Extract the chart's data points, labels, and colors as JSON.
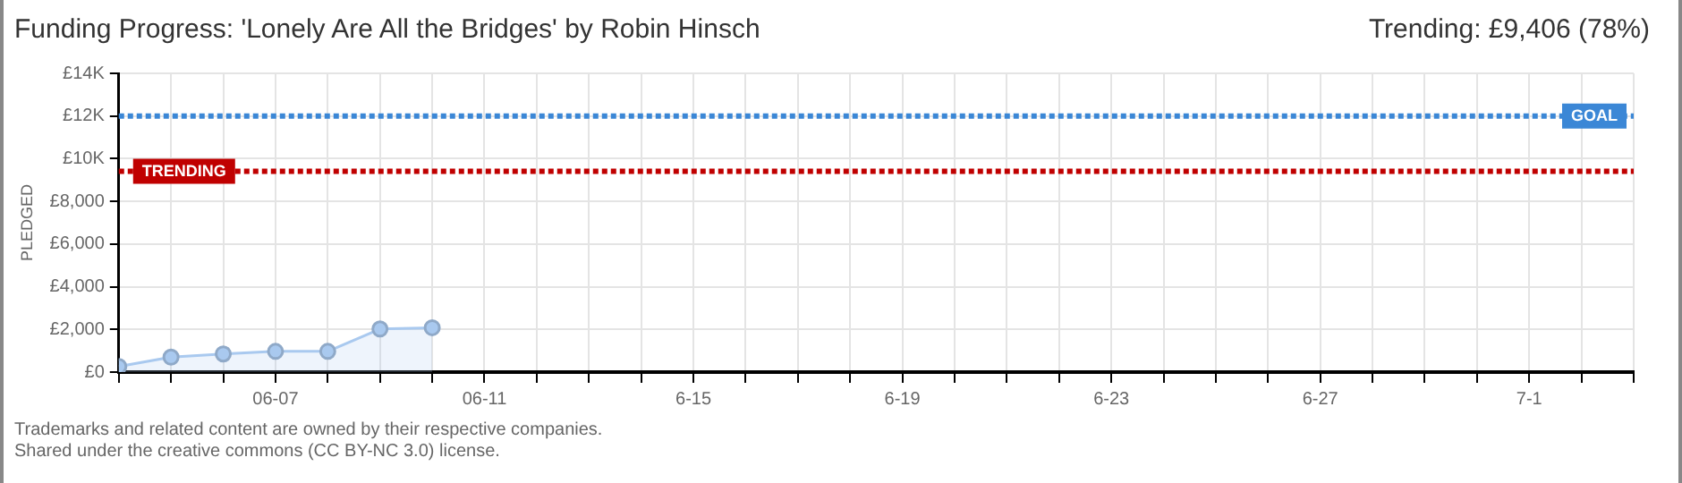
{
  "chart_data": {
    "type": "area",
    "title": "Funding Progress: 'Lonely Are All the Bridges' by Robin Hinsch",
    "subtitle": "Trending:  £9,406 (78%)",
    "ylabel": "PLEDGED",
    "x": [
      "--06-04",
      "--06-05",
      "--06-06",
      "--06-07",
      "--06-08",
      "--06-09",
      "--06-10"
    ],
    "series": [
      {
        "color": "#a9c9ef",
        "values": [
          264,
          700,
          850,
          970,
          970,
          2020,
          2080
        ]
      }
    ],
    "xlim": [
      "--06-04",
      "--07-03"
    ],
    "xticks": [
      {
        "value": "--06-04",
        "label": null
      },
      {
        "value": "--06-05",
        "label": null
      },
      {
        "value": "--06-06",
        "label": null
      },
      {
        "value": "--06-07",
        "label": "06-07"
      },
      {
        "value": "--06-08",
        "label": null
      },
      {
        "value": "--06-09",
        "label": null
      },
      {
        "value": "--06-10",
        "label": null
      },
      {
        "value": "--06-11",
        "label": "06-11"
      },
      {
        "value": "--06-12",
        "label": null
      },
      {
        "value": "--06-13",
        "label": null
      },
      {
        "value": "--06-14",
        "label": null
      },
      {
        "value": "--06-15",
        "label": "6-15"
      },
      {
        "value": "--06-16",
        "label": null
      },
      {
        "value": "--06-17",
        "label": null
      },
      {
        "value": "--06-18",
        "label": null
      },
      {
        "value": "--06-19",
        "label": "6-19"
      },
      {
        "value": "--06-20",
        "label": null
      },
      {
        "value": "--06-21",
        "label": null
      },
      {
        "value": "--06-22",
        "label": null
      },
      {
        "value": "--06-23",
        "label": "6-23"
      },
      {
        "value": "--06-24",
        "label": null
      },
      {
        "value": "--06-25",
        "label": null
      },
      {
        "value": "--06-26",
        "label": null
      },
      {
        "value": "--06-27",
        "label": "6-27"
      },
      {
        "value": "--06-28",
        "label": null
      },
      {
        "value": "--06-29",
        "label": null
      },
      {
        "value": "--06-30",
        "label": null
      },
      {
        "value": "--07-01",
        "label": "7-1"
      },
      {
        "value": "--07-02",
        "label": null
      },
      {
        "value": "--07-03",
        "label": null
      }
    ],
    "ylim": [
      0,
      14000
    ],
    "yticks": [
      {
        "value": 0,
        "label": "£0"
      },
      {
        "value": 2000,
        "label": "£2,000"
      },
      {
        "value": 4000,
        "label": "£4,000"
      },
      {
        "value": 6000,
        "label": "£6,000"
      },
      {
        "value": 8000,
        "label": "£8,000"
      },
      {
        "value": 10000,
        "label": "£10K"
      },
      {
        "value": 12000,
        "label": "£12K"
      },
      {
        "value": 14000,
        "label": "£14K"
      }
    ],
    "ref_lines": [
      {
        "axis": "y",
        "value": 12000,
        "label": "GOAL",
        "color": "#3b87d6",
        "line_style": "dotted"
      },
      {
        "axis": "y",
        "value": 9406,
        "label": "TRENDING",
        "color": "#c00000",
        "line_style": "dotted"
      }
    ],
    "grid": true,
    "legend": false,
    "marker": "circle",
    "annotations": [
      "Trademarks and related content are owned by their respective companies.",
      "Shared under the creative commons (CC BY-NC 3.0) license."
    ]
  }
}
